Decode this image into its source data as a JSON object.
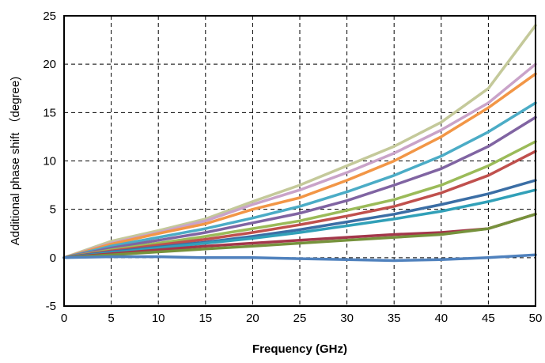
{
  "chart_data": {
    "type": "line",
    "title": "",
    "xlabel": "Frequency (GHz)",
    "ylabel": "Additional phase shift （degree)",
    "xlim": [
      0,
      50
    ],
    "ylim": [
      -5,
      25
    ],
    "x_ticks": [
      "0",
      "5",
      "10",
      "15",
      "20",
      "25",
      "30",
      "35",
      "40",
      "45",
      "50"
    ],
    "y_ticks": [
      "-5",
      "0",
      "5",
      "10",
      "15",
      "20",
      "25"
    ],
    "grid": true,
    "grid_style": "dashed",
    "legend": "none",
    "x": [
      0,
      5,
      10,
      15,
      20,
      25,
      30,
      35,
      40,
      45,
      50
    ],
    "series": [
      {
        "color": "#c4c99a",
        "values": [
          0,
          1.7,
          2.8,
          4.0,
          5.8,
          7.5,
          9.5,
          11.5,
          14.0,
          17.5,
          24.0
        ]
      },
      {
        "color": "#c9a3c9",
        "values": [
          0,
          1.5,
          2.6,
          3.8,
          5.5,
          7.0,
          8.8,
          10.8,
          13.2,
          16.0,
          20.0
        ]
      },
      {
        "color": "#f29646",
        "values": [
          0,
          1.4,
          2.5,
          3.5,
          5.0,
          6.2,
          8.0,
          10.0,
          12.5,
          15.5,
          19.0
        ]
      },
      {
        "color": "#4bacc6",
        "values": [
          0,
          1.2,
          2.1,
          3.0,
          4.1,
          5.3,
          6.8,
          8.5,
          10.5,
          13.0,
          16.0
        ]
      },
      {
        "color": "#8064a2",
        "values": [
          0,
          1.0,
          1.8,
          2.6,
          3.6,
          4.6,
          5.9,
          7.5,
          9.2,
          11.5,
          14.5
        ]
      },
      {
        "color": "#9bbb59",
        "values": [
          0,
          0.8,
          1.5,
          2.2,
          3.0,
          3.8,
          4.9,
          6.0,
          7.5,
          9.5,
          12.0
        ]
      },
      {
        "color": "#c0504d",
        "values": [
          0,
          0.7,
          1.3,
          1.9,
          2.6,
          3.4,
          4.3,
          5.3,
          6.7,
          8.5,
          11.0
        ]
      },
      {
        "color": "#3b6ea5",
        "values": [
          0,
          0.6,
          1.1,
          1.6,
          2.2,
          2.9,
          3.7,
          4.5,
          5.5,
          6.6,
          8.0
        ]
      },
      {
        "color": "#31a0b8",
        "values": [
          0,
          0.5,
          1.0,
          1.5,
          2.0,
          2.6,
          3.3,
          4.0,
          4.8,
          5.8,
          7.0
        ]
      },
      {
        "color": "#a3374a",
        "values": [
          0,
          0.4,
          0.8,
          1.2,
          1.5,
          1.8,
          2.1,
          2.4,
          2.6,
          3.0,
          4.5
        ]
      },
      {
        "color": "#76923c",
        "values": [
          0,
          0.3,
          0.6,
          0.9,
          1.2,
          1.5,
          1.8,
          2.1,
          2.4,
          3.0,
          4.5
        ]
      },
      {
        "color": "#4f81bd",
        "values": [
          0,
          0.1,
          0.1,
          0.0,
          0.0,
          -0.1,
          -0.2,
          -0.3,
          -0.2,
          0.0,
          0.3
        ]
      }
    ]
  }
}
